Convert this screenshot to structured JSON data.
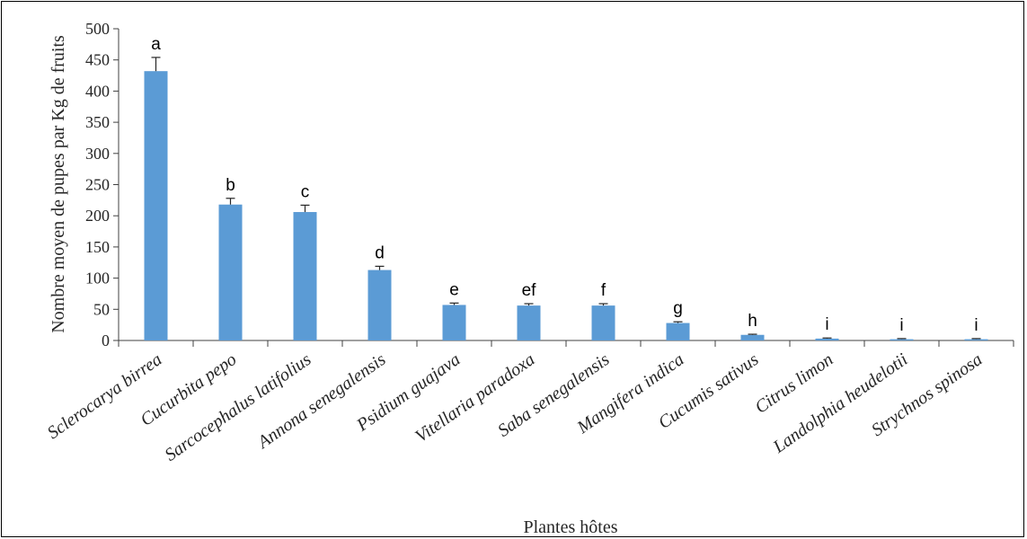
{
  "chart_data": {
    "type": "bar",
    "title": "",
    "xlabel": "Plantes hôtes",
    "ylabel": "Nombre moyen de pupes par Kg de fruits",
    "ylim": [
      0,
      500
    ],
    "yticks": [
      0,
      50,
      100,
      150,
      200,
      250,
      300,
      350,
      400,
      450,
      500
    ],
    "categories": [
      "Sclerocarya birrea",
      "Cucurbita pepo",
      "Sarcocephalus latifolius",
      "Annona senegalensis",
      "Psidium guajava",
      "Vitellaria paradoxa",
      "Saba senegalensis",
      "Mangifera indica",
      "Cucumis sativus",
      "Citrus limon",
      "Landolphia heudelotii",
      "Strychnos spinosa"
    ],
    "values": [
      432,
      218,
      206,
      113,
      57,
      56,
      56,
      28,
      9,
      3,
      2,
      2
    ],
    "errors": [
      22,
      10,
      11,
      6,
      3,
      3,
      3,
      2,
      1,
      1,
      1,
      1
    ],
    "significance_letters": [
      "a",
      "b",
      "c",
      "d",
      "e",
      "ef",
      "f",
      "g",
      "h",
      "i",
      "i",
      "i"
    ],
    "bar_color": "#5b9bd5",
    "grid": false,
    "legend": "none"
  }
}
